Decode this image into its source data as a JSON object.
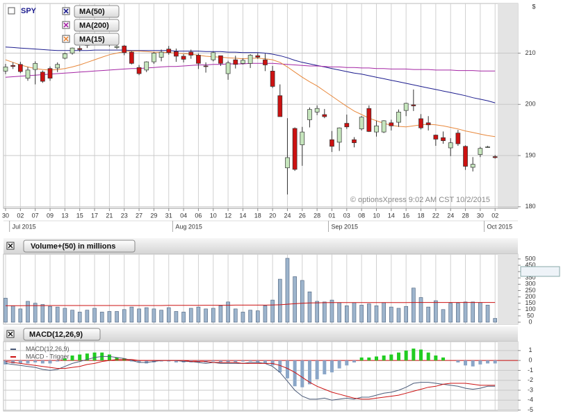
{
  "chart_data": [
    {
      "type": "candlestick",
      "title": "SPY",
      "y_unit": "$",
      "watermark": "© optionsXpress 9:02 AM CST 10/2/2015",
      "categories": [
        "30",
        null,
        "02",
        null,
        "07",
        null,
        "09",
        null,
        "13",
        null,
        "15",
        null,
        "17",
        null,
        "21",
        null,
        "23",
        null,
        "27",
        null,
        "29",
        null,
        "31",
        null,
        "04",
        null,
        "06",
        null,
        "10",
        null,
        "12",
        null,
        "14",
        null,
        "18",
        null,
        "20",
        null,
        "24",
        null,
        "26",
        null,
        "28",
        null,
        "01",
        null,
        "03",
        null,
        "08",
        null,
        "10",
        null,
        "14",
        null,
        "16",
        null,
        "18",
        null,
        "22",
        null,
        "24",
        null,
        "28",
        null,
        "30",
        null,
        "02"
      ],
      "months": [
        "Jul 2015",
        "Aug 2015",
        "Sep 2015",
        "Oct 2015"
      ],
      "month_starts": [
        1,
        23,
        44,
        65
      ],
      "open": [
        206.5,
        207.6,
        207.8,
        205.1,
        206.8,
        206.3,
        207.0,
        207.1,
        209.0,
        210.0,
        210.9,
        211.5,
        212.3,
        212.6,
        212.2,
        211.1,
        211.4,
        210.2,
        207.2,
        206.7,
        208.3,
        209.2,
        210.8,
        210.3,
        209.4,
        210.2,
        209.6,
        207.5,
        208.7,
        209.5,
        206.0,
        208.7,
        208.0,
        208.0,
        209.5,
        208.7,
        206.5,
        201.7,
        187.6,
        195.3,
        192.1,
        197.0,
        198.5,
        198.0,
        193.1,
        192.6,
        196.3,
        193.1,
        195.2,
        199.2,
        194.6,
        194.6,
        196.4,
        196.5,
        198.8,
        199.9,
        197.2,
        196.4,
        194.0,
        193.5,
        191.5,
        194.4,
        191.8,
        187.7,
        190.2,
        191.6,
        189.8
      ],
      "high": [
        207.9,
        208.2,
        208.3,
        207.3,
        208.4,
        206.6,
        207.4,
        208.2,
        210.1,
        211.1,
        211.4,
        212.4,
        212.6,
        213.0,
        212.4,
        211.9,
        211.6,
        210.4,
        207.7,
        208.4,
        210.2,
        210.7,
        211.4,
        210.9,
        209.8,
        210.7,
        209.9,
        208.2,
        210.3,
        209.5,
        208.5,
        209.5,
        209.0,
        209.8,
        210.0,
        209.9,
        207.5,
        203.9,
        197.3,
        195.5,
        195.6,
        199.4,
        199.8,
        199.1,
        194.8,
        195.5,
        198.0,
        193.6,
        197.7,
        199.8,
        196.8,
        196.9,
        197.0,
        199.0,
        200.3,
        202.9,
        198.1,
        197.7,
        194.1,
        194.7,
        193.4,
        195.0,
        192.0,
        189.7,
        191.7,
        191.9,
        190.1
      ],
      "low": [
        205.9,
        206.9,
        206.1,
        204.6,
        203.9,
        204.2,
        204.6,
        206.3,
        208.8,
        209.7,
        210.3,
        211.0,
        211.7,
        212.1,
        211.3,
        210.8,
        209.6,
        207.8,
        205.7,
        206.3,
        207.9,
        208.4,
        209.7,
        208.3,
        208.2,
        208.9,
        206.9,
        206.2,
        208.4,
        207.5,
        204.8,
        207.0,
        207.8,
        207.1,
        208.9,
        206.5,
        203.2,
        197.6,
        182.4,
        187.0,
        188.0,
        195.5,
        197.9,
        197.3,
        190.7,
        190.9,
        195.2,
        191.6,
        194.9,
        194.6,
        193.7,
        194.4,
        194.9,
        195.6,
        197.7,
        198.7,
        195.1,
        194.9,
        191.9,
        192.3,
        189.9,
        191.9,
        187.2,
        186.9,
        189.7,
        191.5,
        189.4
      ],
      "close": [
        207.3,
        207.4,
        206.4,
        206.7,
        208.0,
        204.5,
        205.1,
        207.8,
        209.9,
        211.0,
        210.7,
        212.3,
        212.5,
        212.6,
        211.6,
        211.3,
        210.1,
        208.0,
        206.0,
        208.3,
        210.0,
        210.2,
        210.1,
        209.4,
        208.8,
        209.6,
        208.0,
        207.4,
        210.1,
        208.0,
        208.1,
        207.8,
        208.6,
        209.6,
        209.2,
        207.7,
        203.5,
        197.6,
        189.6,
        187.3,
        194.6,
        199.0,
        199.2,
        197.6,
        191.8,
        195.4,
        195.6,
        192.5,
        197.5,
        194.7,
        195.8,
        196.8,
        195.8,
        198.5,
        200.2,
        199.7,
        195.4,
        196.0,
        193.2,
        192.9,
        192.5,
        192.3,
        187.9,
        188.3,
        191.4,
        191.7,
        189.6
      ],
      "up_color": "#c6e6bd",
      "down_color": "#cc1111",
      "series": [
        {
          "name": "MA(50)",
          "color": "#1c1c8e",
          "values": [
            211.2,
            211.1,
            211.0,
            210.9,
            210.8,
            210.7,
            210.6,
            210.5,
            210.5,
            210.5,
            210.5,
            210.5,
            210.6,
            210.6,
            210.6,
            210.6,
            210.6,
            210.5,
            210.5,
            210.5,
            210.5,
            210.5,
            210.5,
            210.4,
            210.4,
            210.4,
            210.4,
            210.3,
            210.3,
            210.3,
            210.2,
            210.2,
            210.1,
            210.1,
            210.1,
            210.0,
            209.8,
            209.5,
            209.1,
            208.6,
            208.2,
            207.9,
            207.6,
            207.3,
            207.0,
            206.7,
            206.4,
            206.1,
            205.9,
            205.6,
            205.3,
            205.0,
            204.7,
            204.4,
            204.1,
            203.8,
            203.5,
            203.2,
            202.9,
            202.6,
            202.3,
            202.0,
            201.7,
            201.3,
            201.0,
            200.7,
            200.3
          ]
        },
        {
          "name": "MA(200)",
          "color": "#a424a4",
          "values": [
            205.3,
            205.4,
            205.5,
            205.6,
            205.7,
            205.8,
            205.9,
            206.0,
            206.1,
            206.2,
            206.3,
            206.4,
            206.5,
            206.6,
            206.7,
            206.8,
            206.9,
            207.0,
            207.0,
            207.1,
            207.2,
            207.3,
            207.4,
            207.4,
            207.5,
            207.6,
            207.7,
            207.7,
            207.8,
            207.8,
            207.9,
            207.9,
            207.9,
            208.0,
            208.0,
            208.0,
            208.0,
            207.9,
            207.8,
            207.7,
            207.6,
            207.5,
            207.5,
            207.4,
            207.3,
            207.3,
            207.2,
            207.2,
            207.1,
            207.1,
            207.0,
            207.0,
            206.9,
            206.9,
            206.9,
            206.8,
            206.8,
            206.8,
            206.7,
            206.7,
            206.7,
            206.6,
            206.6,
            206.6,
            206.5,
            206.5,
            206.5
          ]
        },
        {
          "name": "MA(15)",
          "color": "#e8873a",
          "values": [
            208.7,
            208.2,
            207.7,
            207.3,
            207.0,
            206.8,
            206.7,
            206.8,
            207.0,
            207.3,
            207.7,
            208.2,
            208.7,
            209.2,
            209.7,
            210.0,
            210.3,
            210.4,
            210.4,
            210.3,
            210.2,
            210.2,
            210.1,
            210.0,
            209.9,
            209.8,
            209.6,
            209.4,
            209.3,
            209.2,
            209.1,
            209.0,
            208.9,
            209.0,
            209.0,
            208.9,
            208.7,
            208.2,
            207.3,
            206.3,
            205.3,
            204.4,
            203.6,
            202.6,
            201.6,
            200.6,
            199.6,
            198.7,
            198.0,
            197.3,
            196.8,
            196.3,
            195.9,
            195.7,
            195.6,
            195.8,
            196.0,
            196.1,
            196.0,
            195.8,
            195.5,
            195.2,
            194.8,
            194.5,
            194.2,
            193.9,
            193.7
          ]
        }
      ],
      "ylim": [
        179.7,
        219.7
      ],
      "yticks": [
        180,
        190,
        200,
        210
      ],
      "grid": true
    },
    {
      "type": "bar",
      "title": "Volume+(50) in millions",
      "color": "#9db4cc",
      "values": [
        190,
        130,
        105,
        165,
        150,
        140,
        125,
        120,
        110,
        95,
        80,
        95,
        110,
        80,
        85,
        85,
        100,
        120,
        105,
        115,
        105,
        95,
        115,
        85,
        80,
        110,
        120,
        105,
        110,
        130,
        160,
        105,
        80,
        95,
        90,
        130,
        175,
        340,
        505,
        360,
        330,
        240,
        165,
        160,
        175,
        155,
        130,
        155,
        135,
        145,
        130,
        155,
        120,
        110,
        125,
        270,
        195,
        120,
        170,
        100,
        150,
        150,
        160,
        160,
        155,
        135,
        30
      ],
      "series": [
        {
          "color": "#cc1111",
          "values": [
            130,
            130,
            130,
            131,
            131,
            131,
            132,
            132,
            132,
            132,
            132,
            132,
            132,
            132,
            132,
            132,
            132,
            132,
            132,
            132,
            132,
            132,
            133,
            133,
            133,
            133,
            133,
            134,
            134,
            134,
            134,
            135,
            135,
            135,
            135,
            135,
            136,
            138,
            142,
            146,
            150,
            152,
            153,
            154,
            155,
            155,
            155,
            155,
            155,
            155,
            155,
            155,
            155,
            155,
            155,
            156,
            156,
            156,
            156,
            156,
            156,
            156,
            156,
            156,
            156,
            156,
            156
          ]
        }
      ],
      "last_value": 396,
      "ylim": [
        0,
        538
      ],
      "yticks": [
        0,
        50,
        100,
        150,
        200,
        250,
        300,
        350,
        400,
        450,
        500
      ],
      "grid": true
    },
    {
      "type": "bar",
      "title": "MACD(12,26,9)",
      "colors": [
        "#22cc22",
        "#8aa6c8"
      ],
      "values": [
        -0.4,
        -0.3,
        -0.3,
        -0.3,
        -0.2,
        -0.3,
        -0.3,
        -0.1,
        0.2,
        0.5,
        0.6,
        0.7,
        0.8,
        0.8,
        0.6,
        0.3,
        0.2,
        -0.1,
        -0.2,
        -0.3,
        -0.2,
        -0.1,
        -0.1,
        -0.2,
        -0.2,
        -0.2,
        -0.2,
        -0.2,
        -0.1,
        -0.2,
        -0.2,
        -0.2,
        -0.1,
        -0.1,
        -0.2,
        -0.3,
        -0.5,
        -1.2,
        -1.8,
        -2.6,
        -2.7,
        -2.4,
        -1.9,
        -1.4,
        -1.2,
        -0.8,
        -0.5,
        -0.2,
        0.3,
        0.3,
        0.4,
        0.5,
        0.6,
        0.8,
        1.0,
        1.2,
        1.1,
        0.8,
        0.5,
        0.3,
        0.0,
        -0.2,
        -0.5,
        -0.6,
        -0.4,
        -0.3,
        -0.3
      ],
      "series": [
        {
          "name": "MACD(12,26,9)",
          "color": "#4a5a78",
          "values": [
            -0.3,
            -0.4,
            -0.5,
            -0.6,
            -0.7,
            -0.9,
            -1.0,
            -0.9,
            -0.6,
            -0.3,
            -0.1,
            0.1,
            0.3,
            0.4,
            0.4,
            0.3,
            0.2,
            0.0,
            -0.2,
            -0.2,
            -0.1,
            0.0,
            0.0,
            0.0,
            -0.1,
            -0.1,
            -0.2,
            -0.3,
            -0.2,
            -0.3,
            -0.3,
            -0.3,
            -0.3,
            -0.2,
            -0.2,
            -0.3,
            -0.6,
            -1.2,
            -2.1,
            -3.0,
            -3.6,
            -3.9,
            -3.9,
            -3.8,
            -4.0,
            -3.9,
            -3.8,
            -3.9,
            -3.7,
            -3.7,
            -3.5,
            -3.3,
            -3.2,
            -3.0,
            -2.7,
            -2.3,
            -2.2,
            -2.2,
            -2.3,
            -2.4,
            -2.5,
            -2.6,
            -2.8,
            -2.9,
            -2.8,
            -2.6,
            -2.6
          ]
        },
        {
          "name": "MACD - Trigger",
          "color": "#cc1111",
          "values": [
            -0.1,
            -0.2,
            -0.3,
            -0.4,
            -0.5,
            -0.6,
            -0.7,
            -0.8,
            -0.8,
            -0.7,
            -0.6,
            -0.4,
            -0.3,
            -0.1,
            0.0,
            0.1,
            0.1,
            0.1,
            0.0,
            0.0,
            0.0,
            0.0,
            0.0,
            0.0,
            0.0,
            -0.1,
            -0.1,
            -0.1,
            -0.2,
            -0.2,
            -0.2,
            -0.2,
            -0.3,
            -0.3,
            -0.3,
            -0.3,
            -0.3,
            -0.5,
            -0.8,
            -1.2,
            -1.7,
            -2.2,
            -2.6,
            -2.9,
            -3.2,
            -3.4,
            -3.6,
            -3.8,
            -3.9,
            -3.9,
            -3.8,
            -3.7,
            -3.6,
            -3.5,
            -3.3,
            -3.1,
            -2.9,
            -2.7,
            -2.6,
            -2.4,
            -2.3,
            -2.3,
            -2.3,
            -2.4,
            -2.5,
            -2.5,
            -2.5
          ]
        }
      ],
      "ylim": [
        -5.1,
        1.9
      ],
      "yticks": [
        1,
        0,
        -1,
        -2,
        -3,
        -4,
        -5
      ],
      "grid": true
    }
  ]
}
